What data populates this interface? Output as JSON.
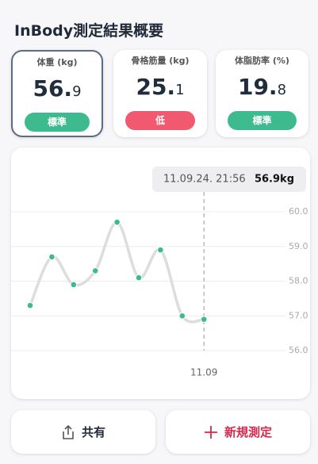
{
  "header": {
    "title": "InBody測定結果概要"
  },
  "metrics": [
    {
      "label": "体重 (kg)",
      "whole": "56.",
      "fraction": "9",
      "status": "標準",
      "status_color": "#3dbb8f"
    },
    {
      "label": "骨格筋量 (kg)",
      "whole": "25.",
      "fraction": "1",
      "status": "低",
      "status_color": "#f0596f"
    },
    {
      "label": "体脂肪率 (%)",
      "whole": "19.",
      "fraction": "8",
      "status": "標準",
      "status_color": "#3dbb8f"
    }
  ],
  "chart_data": {
    "type": "line",
    "categories": [
      null,
      null,
      null,
      null,
      null,
      null,
      null,
      null,
      "11.09"
    ],
    "values": [
      57.3,
      58.7,
      57.9,
      58.3,
      59.7,
      58.1,
      58.9,
      57.0,
      56.9
    ],
    "color": "#3dbb8f",
    "line_color": "#dcdce1",
    "ylim": [
      56,
      60
    ],
    "yticks": [
      {
        "value": 60,
        "label": "60.0"
      },
      {
        "value": 59,
        "label": "59.0"
      },
      {
        "value": 58,
        "label": "58.0"
      },
      {
        "value": 57,
        "label": "57.0"
      },
      {
        "value": 56,
        "label": "56.0"
      }
    ],
    "grid": true,
    "tooltip": {
      "time": "11.09.24. 21:56",
      "value": "56.9kg"
    }
  },
  "actions": [
    {
      "label": "共有"
    },
    {
      "label": "新規測定"
    }
  ]
}
